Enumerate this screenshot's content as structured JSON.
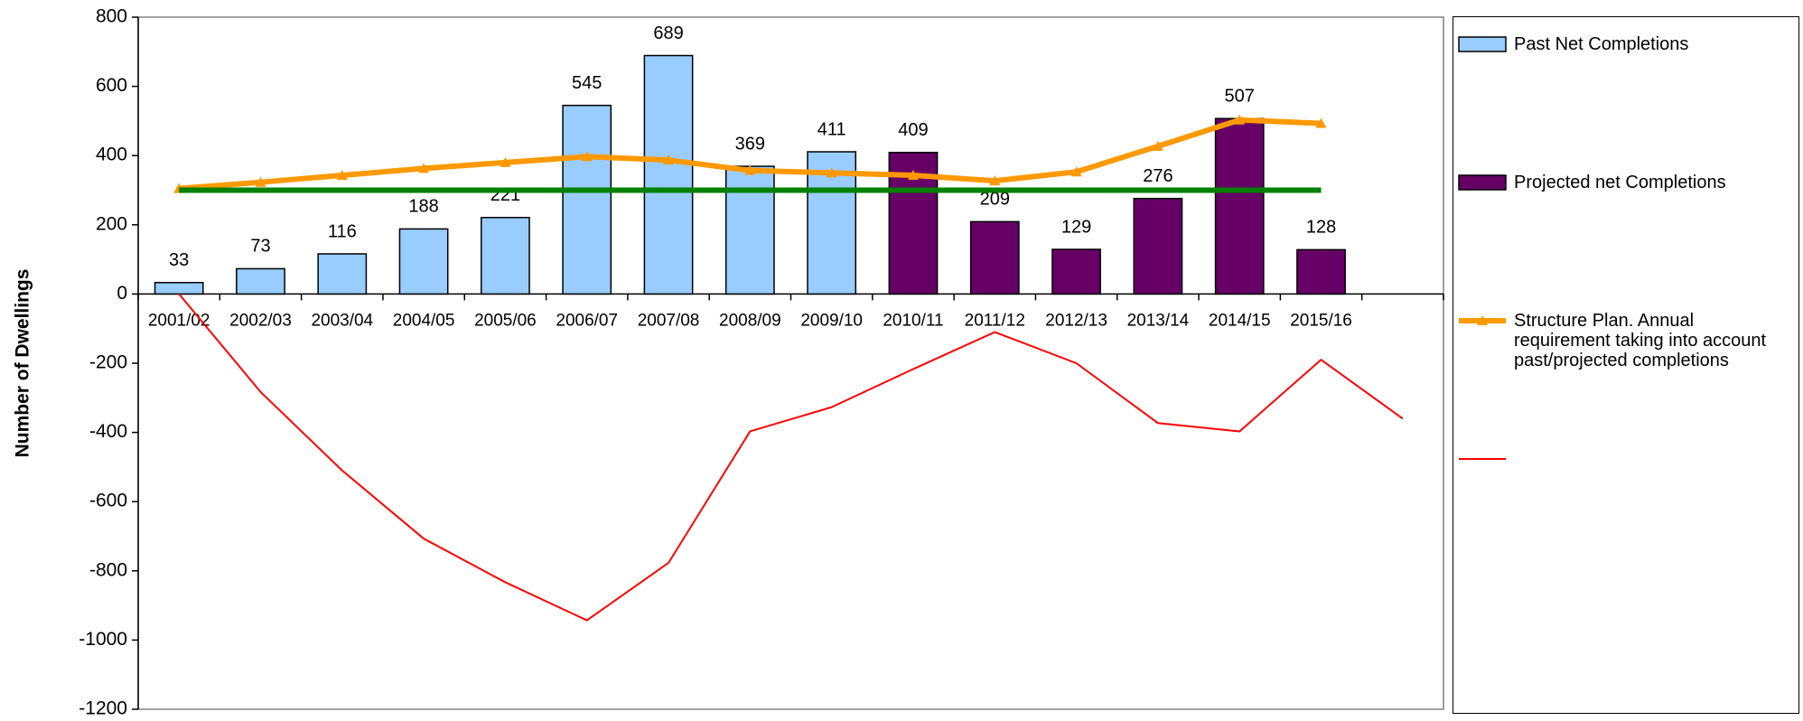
{
  "chart_data": {
    "type": "bar",
    "y_label": "Number of Dwellings",
    "categories": [
      "2001/02",
      "2002/03",
      "2003/04",
      "2004/05",
      "2005/06",
      "2006/07",
      "2007/08",
      "2008/09",
      "2009/10",
      "2010/11",
      "2011/12",
      "2012/13",
      "2013/14",
      "2014/15",
      "2015/16",
      null
    ],
    "ylim": [
      -1200,
      800
    ],
    "yticks": [
      -1200,
      -1000,
      -800,
      -600,
      -400,
      -200,
      0,
      200,
      400,
      600,
      800
    ],
    "series": [
      {
        "name": "Past Net Completions",
        "type": "bar",
        "color": "#99ccff",
        "values": [
          33,
          73,
          116,
          188,
          221,
          545,
          689,
          369,
          411,
          null,
          null,
          null,
          null,
          null,
          null,
          null
        ]
      },
      {
        "name": "Projected net Completions",
        "type": "bar",
        "color": "#660066",
        "values": [
          null,
          null,
          null,
          null,
          null,
          null,
          null,
          null,
          null,
          409,
          209,
          129,
          276,
          507,
          128,
          null
        ]
      },
      {
        "name": "Structure Plan. Annual requirement taking into account past/projected completions",
        "type": "line",
        "color": "#ff9900",
        "width": 6,
        "marker": "triangle",
        "values": [
          305,
          323,
          343,
          363,
          380,
          397,
          387,
          357,
          350,
          343,
          327,
          353,
          427,
          503,
          493,
          null
        ]
      },
      {
        "type": "line",
        "color": "#008000",
        "width": 6,
        "values": [
          300,
          300,
          300,
          300,
          300,
          300,
          300,
          300,
          300,
          300,
          300,
          300,
          300,
          300,
          300,
          null
        ]
      },
      {
        "type": "line",
        "color": "#ff0000",
        "width": 2,
        "values": [
          0,
          -283,
          -510,
          -707,
          -833,
          -943,
          -777,
          -397,
          -327,
          -217,
          -110,
          -200,
          -373,
          -397,
          -190,
          -360
        ]
      }
    ]
  }
}
